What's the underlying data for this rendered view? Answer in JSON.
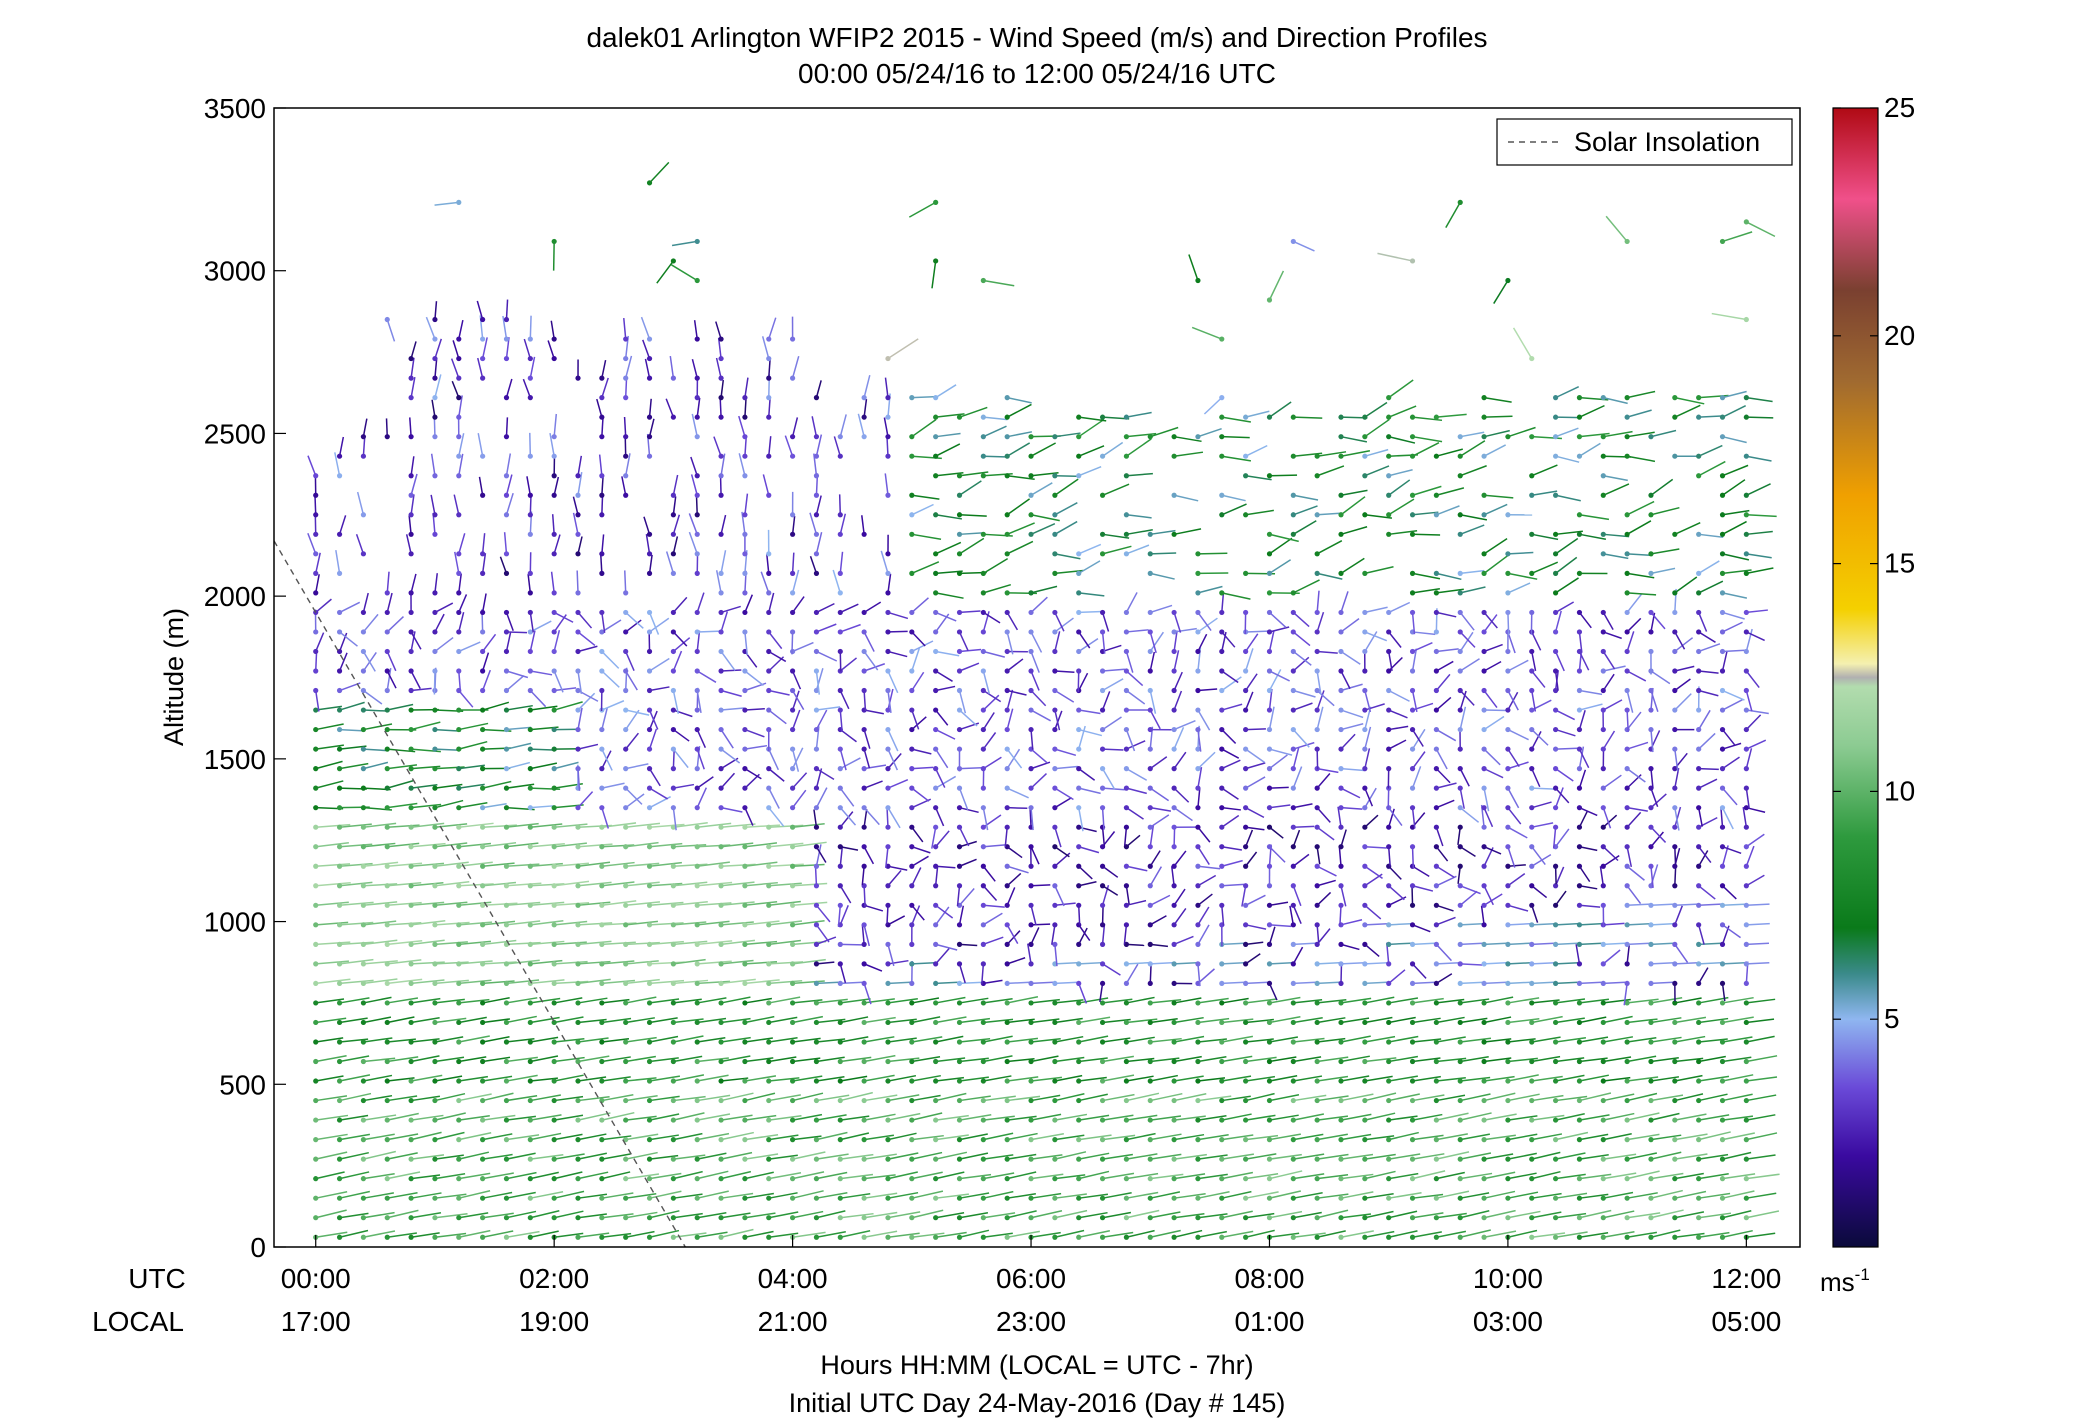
{
  "chart_data": {
    "type": "scatter",
    "title": "dalek01 Arlington WFIP2 2015 - Wind Speed (m/s) and Direction Profiles",
    "subtitle": "00:00 05/24/16 to 12:00 05/24/16  UTC",
    "ylabel": "Altitude (m)",
    "ylim": [
      0,
      3500
    ],
    "xlim_hours_utc": [
      -0.35,
      12.45
    ],
    "y_ticks": [
      "0",
      "500",
      "1000",
      "1500",
      "2000",
      "2500",
      "3000",
      "3500"
    ],
    "x_row_labels": {
      "utc": "UTC",
      "local": "LOCAL"
    },
    "x_ticks_utc": [
      "00:00",
      "02:00",
      "04:00",
      "06:00",
      "08:00",
      "10:00",
      "12:00"
    ],
    "x_ticks_local": [
      "17:00",
      "19:00",
      "21:00",
      "23:00",
      "01:00",
      "03:00",
      "05:00"
    ],
    "xlabel": "Hours HH:MM  (LOCAL = UTC - 7hr)",
    "footer": "Initial UTC Day 24-May-2016 (Day # 145)",
    "legend": {
      "label": "Solar Insolation",
      "position": "top-right",
      "style": "dashed"
    },
    "solar_insolation_line": {
      "x_hours": [
        -0.35,
        3.1
      ],
      "y_altitude": [
        2170,
        0
      ]
    },
    "colorbar": {
      "ticks": [
        "5",
        "10",
        "15",
        "20",
        "25"
      ],
      "unit": "ms",
      "unit_exponent": "-1",
      "range": [
        0,
        25
      ],
      "stops": [
        {
          "v": 0,
          "color": "#0a0a3a"
        },
        {
          "v": 2,
          "color": "#3a0aa0"
        },
        {
          "v": 3.5,
          "color": "#6a4ad8"
        },
        {
          "v": 5,
          "color": "#8fb6f0"
        },
        {
          "v": 6,
          "color": "#3a8a8a"
        },
        {
          "v": 7,
          "color": "#0a7a1a"
        },
        {
          "v": 9,
          "color": "#2e9a3e"
        },
        {
          "v": 11,
          "color": "#8ccb92"
        },
        {
          "v": 12.3,
          "color": "#b2dcae"
        },
        {
          "v": 12.5,
          "color": "#b0b0b0"
        },
        {
          "v": 12.8,
          "color": "#f4f0b0"
        },
        {
          "v": 14,
          "color": "#f4d000"
        },
        {
          "v": 16.5,
          "color": "#f0a000"
        },
        {
          "v": 19,
          "color": "#a06a30"
        },
        {
          "v": 21,
          "color": "#7a4030"
        },
        {
          "v": 23,
          "color": "#f0508a"
        },
        {
          "v": 25,
          "color": "#b00a14"
        }
      ]
    },
    "wind_field_summary": {
      "time_step_hours": 0.2,
      "altitude_step_m": 60,
      "layers": [
        {
          "altitude_range_m": [
            0,
            500
          ],
          "speed_ms": 9,
          "direction": "westerly"
        },
        {
          "altitude_range_m": [
            500,
            800
          ],
          "speed_ms": 8,
          "direction": "westerly"
        },
        {
          "altitude_range_m": [
            800,
            1300
          ],
          "speed_ms": 11,
          "direction": "westerly, until ~04:00 UTC"
        },
        {
          "altitude_range_m": [
            800,
            1300
          ],
          "speed_ms": 2.5,
          "direction": "variable, after ~04:00 UTC"
        },
        {
          "altitude_range_m": [
            1300,
            2000
          ],
          "speed_ms": 3,
          "direction": "variable"
        },
        {
          "altitude_range_m": [
            2000,
            3000
          ],
          "speed_ms": 3,
          "direction": "northerly, before ~05:00 UTC"
        },
        {
          "altitude_range_m": [
            2000,
            2700
          ],
          "speed_ms": 7,
          "direction": "westerly, after ~07:00 UTC"
        }
      ]
    }
  }
}
